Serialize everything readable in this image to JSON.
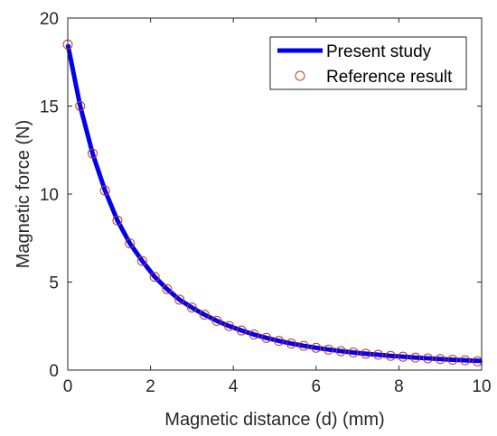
{
  "chart_data": {
    "type": "line",
    "title": "",
    "xlabel": "Magnetic distance (d) (mm)",
    "ylabel": "Magnetic force (N)",
    "xlim": [
      0,
      10
    ],
    "ylim": [
      0,
      20
    ],
    "xticks": [
      "0",
      "2",
      "4",
      "6",
      "8",
      "10"
    ],
    "yticks": [
      "0",
      "5",
      "10",
      "15",
      "20"
    ],
    "grid": false,
    "legend_position": "top-right",
    "series": [
      {
        "name": "Present study",
        "style": "line",
        "color": "#0000ee",
        "x": [
          0,
          0.3,
          0.6,
          0.9,
          1.2,
          1.5,
          1.8,
          2.1,
          2.4,
          2.7,
          3.0,
          3.3,
          3.6,
          3.9,
          4.2,
          4.5,
          4.8,
          5.1,
          5.4,
          5.7,
          6.0,
          6.3,
          6.6,
          6.9,
          7.2,
          7.5,
          7.8,
          8.1,
          8.4,
          8.7,
          9.0,
          9.3,
          9.6,
          10.0
        ],
        "y": [
          18.5,
          15.0,
          12.3,
          10.2,
          8.5,
          7.2,
          6.2,
          5.3,
          4.6,
          4.0,
          3.55,
          3.15,
          2.8,
          2.5,
          2.25,
          2.02,
          1.83,
          1.66,
          1.51,
          1.38,
          1.27,
          1.17,
          1.08,
          1.0,
          0.93,
          0.87,
          0.81,
          0.76,
          0.71,
          0.67,
          0.63,
          0.59,
          0.56,
          0.52
        ]
      },
      {
        "name": "Reference result",
        "style": "marker",
        "color": "#c0392b",
        "x": [
          0,
          0.3,
          0.6,
          0.9,
          1.2,
          1.5,
          1.8,
          2.1,
          2.4,
          2.7,
          3.0,
          3.3,
          3.6,
          3.9,
          4.2,
          4.5,
          4.8,
          5.1,
          5.4,
          5.7,
          6.0,
          6.3,
          6.6,
          6.9,
          7.2,
          7.5,
          7.8,
          8.1,
          8.4,
          8.7,
          9.0,
          9.3,
          9.6,
          9.9
        ],
        "y": [
          18.5,
          15.0,
          12.3,
          10.2,
          8.5,
          7.2,
          6.2,
          5.3,
          4.6,
          4.0,
          3.55,
          3.15,
          2.8,
          2.5,
          2.25,
          2.02,
          1.83,
          1.66,
          1.51,
          1.38,
          1.27,
          1.17,
          1.08,
          1.0,
          0.93,
          0.87,
          0.81,
          0.76,
          0.71,
          0.67,
          0.63,
          0.59,
          0.56,
          0.5
        ]
      }
    ]
  }
}
